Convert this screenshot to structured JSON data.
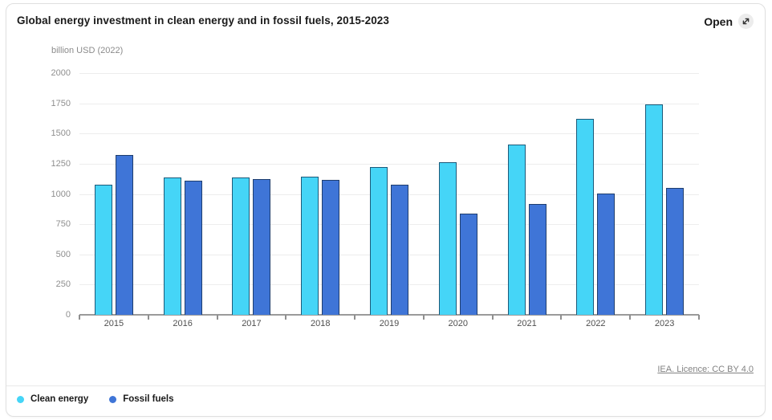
{
  "header": {
    "title": "Global energy investment in clean energy and in fossil fuels, 2015-2023",
    "open_label": "Open"
  },
  "chart_data": {
    "type": "bar",
    "title": "Global energy investment in clean energy and in fossil fuels, 2015-2023",
    "ylabel": "billion USD (2022)",
    "xlabel": "",
    "categories": [
      "2015",
      "2016",
      "2017",
      "2018",
      "2019",
      "2020",
      "2021",
      "2022",
      "2023"
    ],
    "series": [
      {
        "name": "Clean energy",
        "color": "#45D5F7",
        "border_color": "#1B5A7A",
        "values": [
          1075,
          1135,
          1135,
          1145,
          1225,
          1260,
          1410,
          1620,
          1740
        ]
      },
      {
        "name": "Fossil fuels",
        "color": "#3F75D7",
        "border_color": "#1F3E6E",
        "values": [
          1320,
          1110,
          1120,
          1115,
          1075,
          840,
          915,
          1005,
          1050
        ]
      }
    ],
    "ylim": [
      0,
      2000
    ],
    "ytick_step": 250,
    "grid": true,
    "legend_position": "bottom-left"
  },
  "footer": {
    "license_link": "IEA. Licence: CC BY 4.0"
  }
}
